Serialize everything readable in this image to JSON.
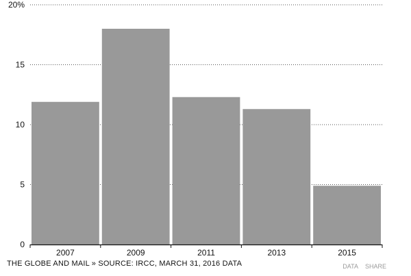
{
  "chart_data": {
    "type": "bar",
    "categories": [
      "2007",
      "2009",
      "2011",
      "2013",
      "2015"
    ],
    "values": [
      11.9,
      18.0,
      12.3,
      11.3,
      4.9
    ],
    "title": "",
    "xlabel": "",
    "ylabel": "",
    "ylim": [
      0,
      20
    ],
    "yticks": [
      {
        "value": 0,
        "label": "0"
      },
      {
        "value": 5,
        "label": "5"
      },
      {
        "value": 10,
        "label": "10"
      },
      {
        "value": 15,
        "label": "15"
      },
      {
        "value": 20,
        "label": "20%"
      }
    ],
    "grid": true,
    "bar_color": "#999999",
    "grid_color": "#555555"
  },
  "footer": {
    "source": "THE GLOBE AND MAIL » SOURCE: IRCC, MARCH 31, 2016 DATA",
    "data_link": "DATA",
    "share_link": "SHARE"
  }
}
